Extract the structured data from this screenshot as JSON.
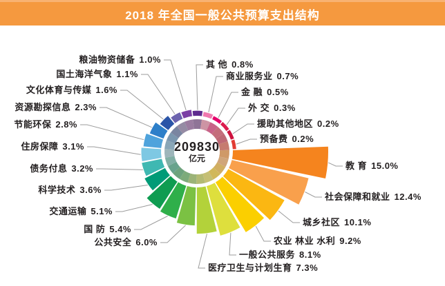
{
  "header": {
    "title": "2018 年全国一般公共预算支出结构"
  },
  "center": {
    "value": "209830",
    "unit": "亿元"
  },
  "chart_data": {
    "type": "pie",
    "variant": "nightingale-rose-donut",
    "title": "2018 年全国一般公共预算支出结构",
    "center_total": {
      "value": 209830,
      "unit": "亿元"
    },
    "value_unit": "%",
    "order": "clockwise from east, descending by value",
    "legend_position": "labels around chart with leader lines",
    "segments": [
      {
        "name": "教 育",
        "value": 15.0,
        "pct_label": "15.0%",
        "color": "#F5841E"
      },
      {
        "name": "社会保障和就业",
        "value": 12.4,
        "pct_label": "12.4%",
        "color": "#F9A04C"
      },
      {
        "name": "城乡社区",
        "value": 10.1,
        "pct_label": "10.1%",
        "color": "#FBB712"
      },
      {
        "name": "农业 林业 水利",
        "value": 9.2,
        "pct_label": "9.2%",
        "color": "#FBCF00"
      },
      {
        "name": "一般公共服务",
        "value": 8.1,
        "pct_label": "8.1%",
        "color": "#DEDF3D"
      },
      {
        "name": "医疗卫生与计划生育",
        "value": 7.3,
        "pct_label": "7.3%",
        "color": "#B3D23A"
      },
      {
        "name": "公共安全",
        "value": 6.0,
        "pct_label": "6.0%",
        "color": "#7BC143"
      },
      {
        "name": "国 防",
        "value": 5.4,
        "pct_label": "5.4%",
        "color": "#2FAF4A"
      },
      {
        "name": "交通运输",
        "value": 5.1,
        "pct_label": "5.1%",
        "color": "#0F9C51"
      },
      {
        "name": "科学技术",
        "value": 3.6,
        "pct_label": "3.6%",
        "color": "#009B77"
      },
      {
        "name": "债务付息",
        "value": 3.2,
        "pct_label": "3.2%",
        "color": "#3FB8B2"
      },
      {
        "name": "住房保障",
        "value": 3.1,
        "pct_label": "3.1%",
        "color": "#7EC8E3"
      },
      {
        "name": "节能环保",
        "value": 2.8,
        "pct_label": "2.8%",
        "color": "#4FA3DC"
      },
      {
        "name": "资源勘探信息",
        "value": 2.3,
        "pct_label": "2.3%",
        "color": "#2D7FC9"
      },
      {
        "name": "文化体育与传媒",
        "value": 1.6,
        "pct_label": "1.6%",
        "color": "#2B55A8"
      },
      {
        "name": "国土海洋气象",
        "value": 1.1,
        "pct_label": "1.1%",
        "color": "#6C63AE"
      },
      {
        "name": "粮油物资储备",
        "value": 1.0,
        "pct_label": "1.0%",
        "color": "#7B3FA5"
      },
      {
        "name": "其 他",
        "value": 0.8,
        "pct_label": "0.8%",
        "color": "#5E2B8F"
      },
      {
        "name": "商业服务业",
        "value": 0.7,
        "pct_label": "0.7%",
        "color": "#F078AE"
      },
      {
        "name": "金 融",
        "value": 0.5,
        "pct_label": "0.5%",
        "color": "#E5046C"
      },
      {
        "name": "外 交",
        "value": 0.3,
        "pct_label": "0.3%",
        "color": "#DB1C4E"
      },
      {
        "name": "援助其他地区",
        "value": 0.2,
        "pct_label": "0.2%",
        "color": "#CE123E"
      },
      {
        "name": "预备费",
        "value": 0.2,
        "pct_label": "0.2%",
        "color": "#E13C34"
      }
    ]
  }
}
